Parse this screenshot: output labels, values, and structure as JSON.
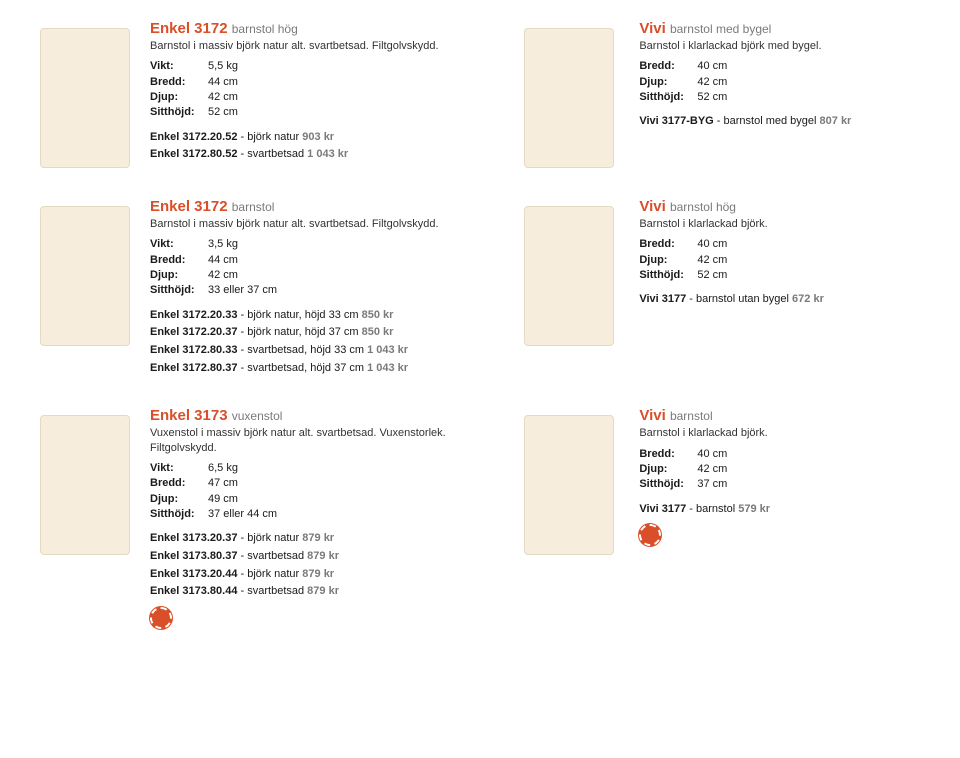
{
  "products": [
    {
      "left": {
        "title_accent": "Enkel 3172",
        "title_sub": "barnstol hög",
        "desc": "Barnstol i massiv björk natur alt. svartbetsad. Filtgolvskydd.",
        "specs": [
          {
            "label": "Vikt:",
            "value": "5,5 kg"
          },
          {
            "label": "Bredd:",
            "value": "44 cm"
          },
          {
            "label": "Djup:",
            "value": "42 cm"
          },
          {
            "label": "Sitthöjd:",
            "value": "52 cm"
          }
        ],
        "skus": [
          {
            "sku": "Enkel 3172.20.52",
            "variant": " - björk natur ",
            "price": "903 kr"
          },
          {
            "sku": "Enkel 3172.80.52",
            "variant": " - svartbetsad ",
            "price": "1 043 kr"
          }
        ]
      },
      "right": {
        "title_accent": "Vivi",
        "title_sub": "barnstol med bygel",
        "desc": "Barnstol i klarlackad björk med bygel.",
        "specs": [
          {
            "label": "Bredd:",
            "value": "40 cm"
          },
          {
            "label": "Djup:",
            "value": "42 cm"
          },
          {
            "label": "Sitthöjd:",
            "value": "52 cm"
          }
        ],
        "skus": [
          {
            "sku": "Vivi 3177-BYG",
            "variant": " - barnstol med bygel ",
            "price": "807 kr"
          }
        ]
      }
    },
    {
      "left": {
        "title_accent": "Enkel 3172",
        "title_sub": "barnstol",
        "desc": "Barnstol i massiv björk natur alt. svartbetsad. Filtgolvskydd.",
        "specs": [
          {
            "label": "Vikt:",
            "value": "3,5 kg"
          },
          {
            "label": "Bredd:",
            "value": "44 cm"
          },
          {
            "label": "Djup:",
            "value": "42 cm"
          },
          {
            "label": "Sitthöjd:",
            "value": "33 eller 37 cm"
          }
        ],
        "skus": [
          {
            "sku": "Enkel 3172.20.33",
            "variant": " - björk natur, höjd 33 cm ",
            "price": "850 kr"
          },
          {
            "sku": "Enkel 3172.20.37",
            "variant": " - björk natur, höjd 37 cm ",
            "price": "850 kr"
          },
          {
            "sku": "Enkel 3172.80.33",
            "variant": " - svartbetsad, höjd 33 cm ",
            "price": "1 043 kr"
          },
          {
            "sku": "Enkel 3172.80.37",
            "variant": " - svartbetsad, höjd 37 cm ",
            "price": "1 043 kr"
          }
        ]
      },
      "right": {
        "title_accent": "Vivi",
        "title_sub": "barnstol hög",
        "desc": "Barnstol i klarlackad björk.",
        "specs": [
          {
            "label": "Bredd:",
            "value": "40 cm"
          },
          {
            "label": "Djup:",
            "value": "42 cm"
          },
          {
            "label": "Sitthöjd:",
            "value": "52 cm"
          }
        ],
        "skus": [
          {
            "sku": "Vivi 3177",
            "variant": " - barnstol utan bygel ",
            "price": "672 kr"
          }
        ]
      }
    },
    {
      "left": {
        "title_accent": "Enkel 3173",
        "title_sub": "vuxenstol",
        "desc": "Vuxenstol i massiv björk natur alt. svartbetsad. Vuxenstorlek. Filtgolvskydd.",
        "specs": [
          {
            "label": "Vikt:",
            "value": "6,5 kg"
          },
          {
            "label": "Bredd:",
            "value": "47 cm"
          },
          {
            "label": "Djup:",
            "value": "49 cm"
          },
          {
            "label": "Sitthöjd:",
            "value": "37 eller 44 cm"
          }
        ],
        "skus": [
          {
            "sku": "Enkel 3173.20.37",
            "variant": " - björk natur ",
            "price": "879 kr"
          },
          {
            "sku": "Enkel 3173.80.37",
            "variant": " - svartbetsad ",
            "price": "879 kr"
          },
          {
            "sku": "Enkel 3173.20.44",
            "variant": " - björk natur ",
            "price": "879 kr"
          },
          {
            "sku": "Enkel 3173.80.44",
            "variant": " - svartbetsad ",
            "price": "879 kr"
          }
        ],
        "badge": true
      },
      "right": {
        "title_accent": "Vivi",
        "title_sub": "barnstol",
        "desc": "Barnstol i klarlackad björk.",
        "specs": [
          {
            "label": "Bredd:",
            "value": "40 cm"
          },
          {
            "label": "Djup:",
            "value": "42 cm"
          },
          {
            "label": "Sitthöjd:",
            "value": "37 cm"
          }
        ],
        "skus": [
          {
            "sku": "Vivi 3177",
            "variant": " - barnstol ",
            "price": "579 kr"
          }
        ],
        "badge": true
      }
    }
  ],
  "accent_color": "#d94f2a"
}
